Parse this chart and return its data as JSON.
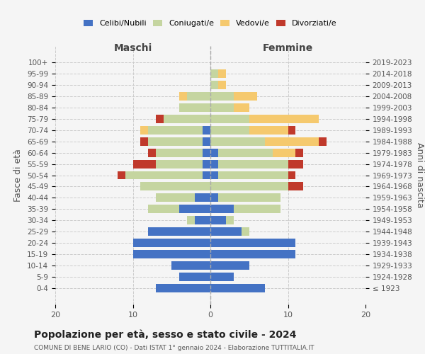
{
  "age_groups": [
    "100+",
    "95-99",
    "90-94",
    "85-89",
    "80-84",
    "75-79",
    "70-74",
    "65-69",
    "60-64",
    "55-59",
    "50-54",
    "45-49",
    "40-44",
    "35-39",
    "30-34",
    "25-29",
    "20-24",
    "15-19",
    "10-14",
    "5-9",
    "0-4"
  ],
  "birth_years": [
    "≤ 1923",
    "1924-1928",
    "1929-1933",
    "1934-1938",
    "1939-1943",
    "1944-1948",
    "1949-1953",
    "1954-1958",
    "1959-1963",
    "1964-1968",
    "1969-1973",
    "1974-1978",
    "1979-1983",
    "1984-1988",
    "1989-1993",
    "1994-1998",
    "1999-2003",
    "2004-2008",
    "2009-2013",
    "2014-2018",
    "2019-2023"
  ],
  "colors": {
    "celibi": "#4472c4",
    "coniugati": "#c5d5a0",
    "vedovi": "#f5c96e",
    "divorziati": "#c0392b",
    "background": "#f5f5f5",
    "grid": "#cccccc"
  },
  "maschi": {
    "celibi": [
      0,
      0,
      0,
      0,
      0,
      0,
      1,
      1,
      1,
      1,
      1,
      0,
      2,
      4,
      2,
      8,
      10,
      10,
      5,
      4,
      7
    ],
    "coniugati": [
      0,
      0,
      0,
      3,
      4,
      6,
      7,
      7,
      6,
      6,
      10,
      9,
      5,
      4,
      1,
      0,
      0,
      0,
      0,
      0,
      0
    ],
    "vedovi": [
      0,
      0,
      0,
      1,
      0,
      0,
      1,
      0,
      0,
      0,
      0,
      0,
      0,
      0,
      0,
      0,
      0,
      0,
      0,
      0,
      0
    ],
    "divorziati": [
      0,
      0,
      0,
      0,
      0,
      1,
      0,
      1,
      1,
      3,
      1,
      0,
      0,
      0,
      0,
      0,
      0,
      0,
      0,
      0,
      0
    ]
  },
  "femmine": {
    "celibi": [
      0,
      0,
      0,
      0,
      0,
      0,
      0,
      0,
      1,
      1,
      1,
      0,
      1,
      3,
      2,
      4,
      11,
      11,
      5,
      3,
      7
    ],
    "coniugati": [
      0,
      1,
      1,
      3,
      3,
      5,
      5,
      7,
      7,
      9,
      9,
      10,
      8,
      6,
      1,
      1,
      0,
      0,
      0,
      0,
      0
    ],
    "vedovi": [
      0,
      1,
      1,
      3,
      2,
      9,
      5,
      7,
      3,
      0,
      0,
      0,
      0,
      0,
      0,
      0,
      0,
      0,
      0,
      0,
      0
    ],
    "divorziati": [
      0,
      0,
      0,
      0,
      0,
      0,
      1,
      1,
      1,
      2,
      1,
      2,
      0,
      0,
      0,
      0,
      0,
      0,
      0,
      0,
      0
    ]
  },
  "xlim": 20,
  "title": "Popolazione per età, sesso e stato civile - 2024",
  "subtitle": "COMUNE DI BENE LARIO (CO) - Dati ISTAT 1° gennaio 2024 - Elaborazione TUTTITALIA.IT",
  "ylabel_left": "Fasce di età",
  "ylabel_right": "Anni di nascita",
  "xlabel_left": "Maschi",
  "xlabel_right": "Femmine"
}
